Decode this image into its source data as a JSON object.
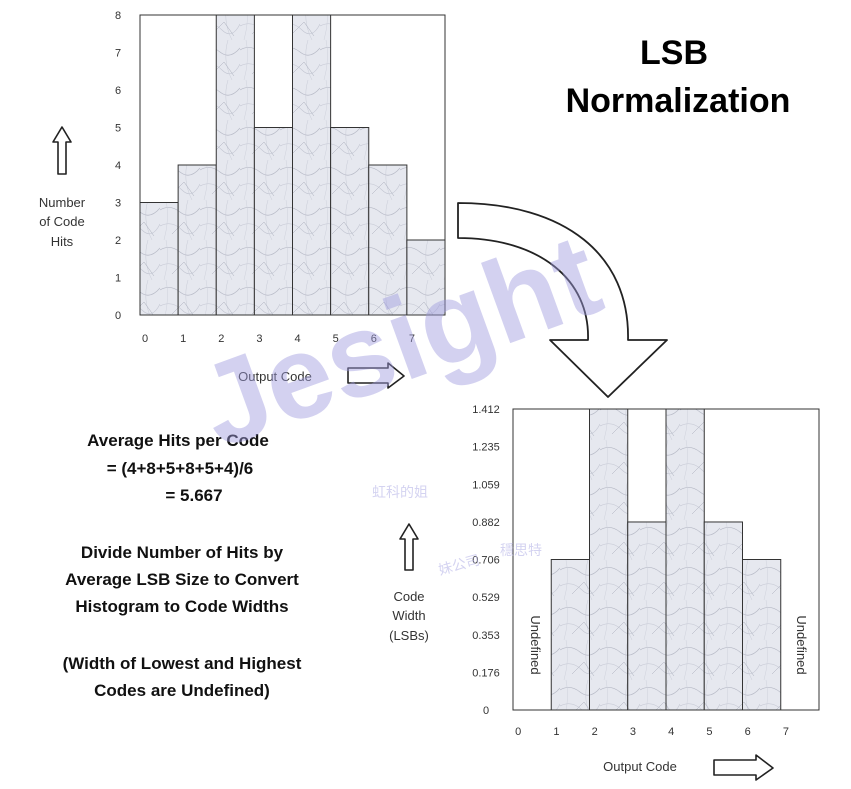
{
  "title": [
    "LSB",
    "Normalization"
  ],
  "explanation": {
    "average_lines": [
      "Average Hits per Code",
      "= (4+8+5+8+5+4)/6",
      "= 5.667"
    ],
    "divide_lines": [
      "Divide Number of Hits by",
      "Average LSB Size to Convert",
      "Histogram to Code Widths"
    ],
    "note_lines": [
      "(Width of Lowest and Highest",
      "Codes are Undefined)"
    ]
  },
  "watermark": {
    "brand": "Jesight",
    "cn_lines": [
      "虹科的姐",
      "妹公司"
    ],
    "cn_brand": "穩思特"
  },
  "colors": {
    "bar_fill": "#e4e6ee",
    "bar_stroke": "#333333",
    "arrow_stroke": "#222222",
    "watermark": "#9f9bdf"
  },
  "chart_data": [
    {
      "type": "bar",
      "categories": [
        "0",
        "1",
        "2",
        "3",
        "4",
        "5",
        "6",
        "7"
      ],
      "values": [
        3,
        4,
        8,
        5,
        8,
        5,
        4,
        2
      ],
      "ylim": [
        0,
        8
      ],
      "yticks": [
        "0",
        "1",
        "2",
        "3",
        "4",
        "5",
        "6",
        "7",
        "8"
      ],
      "ylabel_lines": [
        "Number",
        "of Code",
        "Hits"
      ],
      "xlabel": "Output Code",
      "grid": false
    },
    {
      "type": "bar",
      "categories": [
        "0",
        "1",
        "2",
        "3",
        "4",
        "5",
        "6",
        "7"
      ],
      "values": [
        null,
        0.706,
        1.412,
        0.882,
        1.412,
        0.882,
        0.706,
        null
      ],
      "undefined_label": "Undefined",
      "ylim": [
        0,
        1.412
      ],
      "yticks": [
        "0",
        "0.176",
        "0.353",
        "0.529",
        "0.706",
        "0.882",
        "1.059",
        "1.235",
        "1.412"
      ],
      "ylabel_lines": [
        "Code",
        "Width",
        "(LSBs)"
      ],
      "xlabel": "Output Code",
      "grid": false
    }
  ]
}
